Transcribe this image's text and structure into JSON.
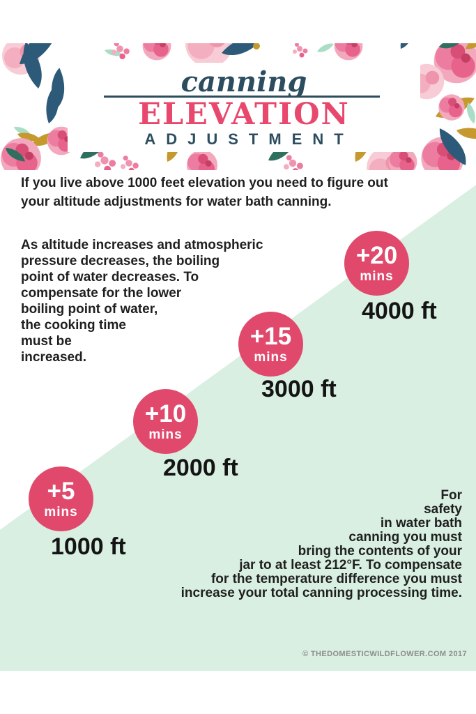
{
  "poster": {
    "banner": {
      "script_title": "canning",
      "main_title": "ELEVATION",
      "sub_title": "ADJUSTMENT"
    },
    "intro_lines": [
      "If you live above 1000 feet elevation you need to figure out",
      "your altitude adjustments for water bath canning."
    ],
    "explanation_lines": [
      "As altitude increases and atmospheric",
      "pressure decreases, the boiling",
      "point of water decreases. To",
      "compensate for the lower",
      "boiling point of water,",
      "the cooking time",
      "must be",
      "increased."
    ],
    "safety_lines": [
      "For",
      "safety",
      "in water bath",
      "canning you must",
      "bring the contents of your",
      "jar to at least 212°F. To compensate",
      "for the temperature difference you must",
      "increase your total canning processing time."
    ],
    "footer_credit": "© THEDOMESTICWILDFLOWER.COM 2017"
  },
  "steps": [
    {
      "value": "+5",
      "unit": "mins",
      "elevation": "1000 ft"
    },
    {
      "value": "+10",
      "unit": "mins",
      "elevation": "2000 ft"
    },
    {
      "value": "+15",
      "unit": "mins",
      "elevation": "3000 ft"
    },
    {
      "value": "+20",
      "unit": "mins",
      "elevation": "4000 ft"
    }
  ],
  "chart_data": {
    "type": "area",
    "subtype": "elevation-step-infographic",
    "title": "canning ELEVATION ADJUSTMENT",
    "categories": [
      "1000 ft",
      "2000 ft",
      "3000 ft",
      "4000 ft"
    ],
    "values": [
      5,
      10,
      15,
      20
    ],
    "value_unit": "mins",
    "value_labels": [
      "+5 mins",
      "+10 mins",
      "+15 mins",
      "+20 mins"
    ]
  },
  "colors": {
    "accent_pink": "#e1496c",
    "title_pink": "#e8486e",
    "navy": "#2c4d60",
    "mint": "#d8efe2",
    "text_dark": "#1f1f1f",
    "footer_gray": "#8c8c8c"
  }
}
